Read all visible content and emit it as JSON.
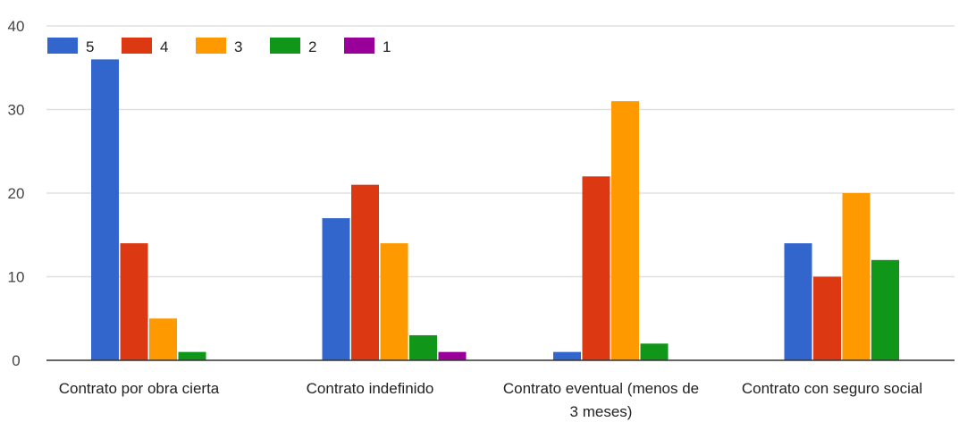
{
  "chart_data": {
    "type": "bar",
    "categories": [
      "Contrato por obra cierta",
      "Contrato indefinido",
      "Contrato eventual (menos de 3 meses)",
      "Contrato con seguro social"
    ],
    "category_label_lines": [
      [
        "Contrato por obra cierta"
      ],
      [
        "Contrato indefinido"
      ],
      [
        "Contrato eventual (menos de",
        "3 meses)"
      ],
      [
        "Contrato con seguro social"
      ]
    ],
    "series": [
      {
        "name": "5",
        "color": "#3366cc",
        "values": [
          36,
          17,
          1,
          14
        ]
      },
      {
        "name": "4",
        "color": "#dc3912",
        "values": [
          14,
          21,
          22,
          10
        ]
      },
      {
        "name": "3",
        "color": "#ff9900",
        "values": [
          5,
          14,
          31,
          20
        ]
      },
      {
        "name": "2",
        "color": "#109618",
        "values": [
          1,
          3,
          2,
          12
        ]
      },
      {
        "name": "1",
        "color": "#990099",
        "values": [
          0,
          1,
          0,
          0
        ]
      }
    ],
    "y_ticks": [
      0,
      10,
      20,
      30,
      40
    ],
    "ylim": [
      0,
      40
    ],
    "grid": true,
    "legend_position": "top-left",
    "title": "",
    "xlabel": "",
    "ylabel": ""
  }
}
